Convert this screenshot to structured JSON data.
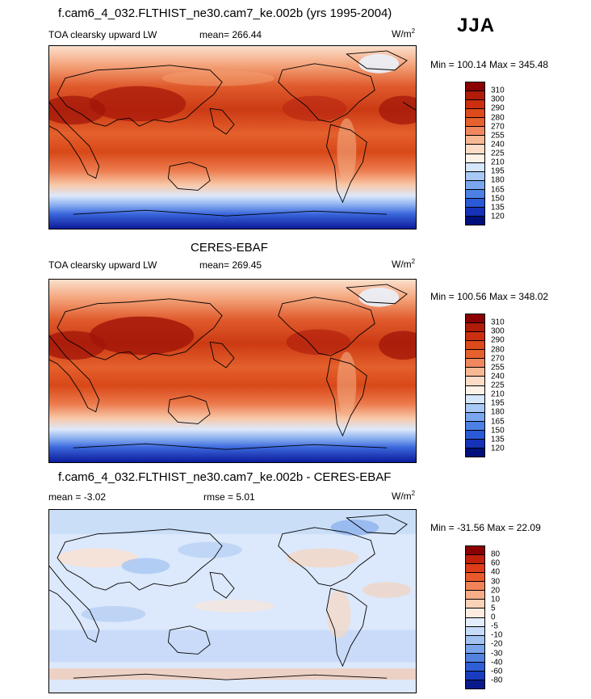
{
  "season": "JJA",
  "panels": [
    {
      "title": "f.cam6_4_032.FLTHIST_ne30.cam7_ke.002b (yrs 1995-2004)",
      "variable": "TOA clearsky upward LW",
      "mean_label": "mean= 266.44",
      "rmse_label": "",
      "units_base": "W/m",
      "units_exp": "2",
      "minmax": "Min = 100.14 Max = 345.48",
      "colorbar_labels": [
        "310",
        "300",
        "290",
        "280",
        "270",
        "255",
        "240",
        "225",
        "210",
        "195",
        "180",
        "165",
        "150",
        "135",
        "120"
      ],
      "colorbar_colors": [
        "#8b0000",
        "#b01b0a",
        "#cc2f10",
        "#dd4a1c",
        "#e6612e",
        "#ef8860",
        "#f7b894",
        "#fbdcc6",
        "#fdf2e8",
        "#d6e6fb",
        "#a8c8f5",
        "#7aa6ee",
        "#4d80e4",
        "#2a5ad8",
        "#1532b8",
        "#00107a"
      ]
    },
    {
      "title": "CERES-EBAF",
      "variable": "TOA clearsky upward LW",
      "mean_label": "mean= 269.45",
      "rmse_label": "",
      "units_base": "W/m",
      "units_exp": "2",
      "minmax": "Min = 100.56 Max = 348.02",
      "colorbar_labels": [
        "310",
        "300",
        "290",
        "280",
        "270",
        "255",
        "240",
        "225",
        "210",
        "195",
        "180",
        "165",
        "150",
        "135",
        "120"
      ],
      "colorbar_colors": [
        "#8b0000",
        "#b01b0a",
        "#cc2f10",
        "#dd4a1c",
        "#e6612e",
        "#ef8860",
        "#f7b894",
        "#fbdcc6",
        "#fdf2e8",
        "#d6e6fb",
        "#a8c8f5",
        "#7aa6ee",
        "#4d80e4",
        "#2a5ad8",
        "#1532b8",
        "#00107a"
      ]
    },
    {
      "title": "f.cam6_4_032.FLTHIST_ne30.cam7_ke.002b - CERES-EBAF",
      "variable": "",
      "mean_label": "mean =  -3.02",
      "rmse_label": "rmse =   5.01",
      "units_base": "W/m",
      "units_exp": "2",
      "minmax": "Min = -31.56 Max =  22.09",
      "colorbar_labels": [
        "80",
        "60",
        "40",
        "30",
        "20",
        "10",
        "5",
        "0",
        "-5",
        "-10",
        "-20",
        "-30",
        "-40",
        "-60",
        "-80"
      ],
      "colorbar_colors": [
        "#8b0000",
        "#c0200c",
        "#dd3d18",
        "#e85a2c",
        "#f08458",
        "#f6ae88",
        "#fad2b6",
        "#fdecdf",
        "#e3eefc",
        "#c6dcf8",
        "#a2c3f2",
        "#7aa4ea",
        "#5282e0",
        "#2f5ed6",
        "#1a3cc0",
        "#0a1a8c"
      ]
    }
  ]
}
